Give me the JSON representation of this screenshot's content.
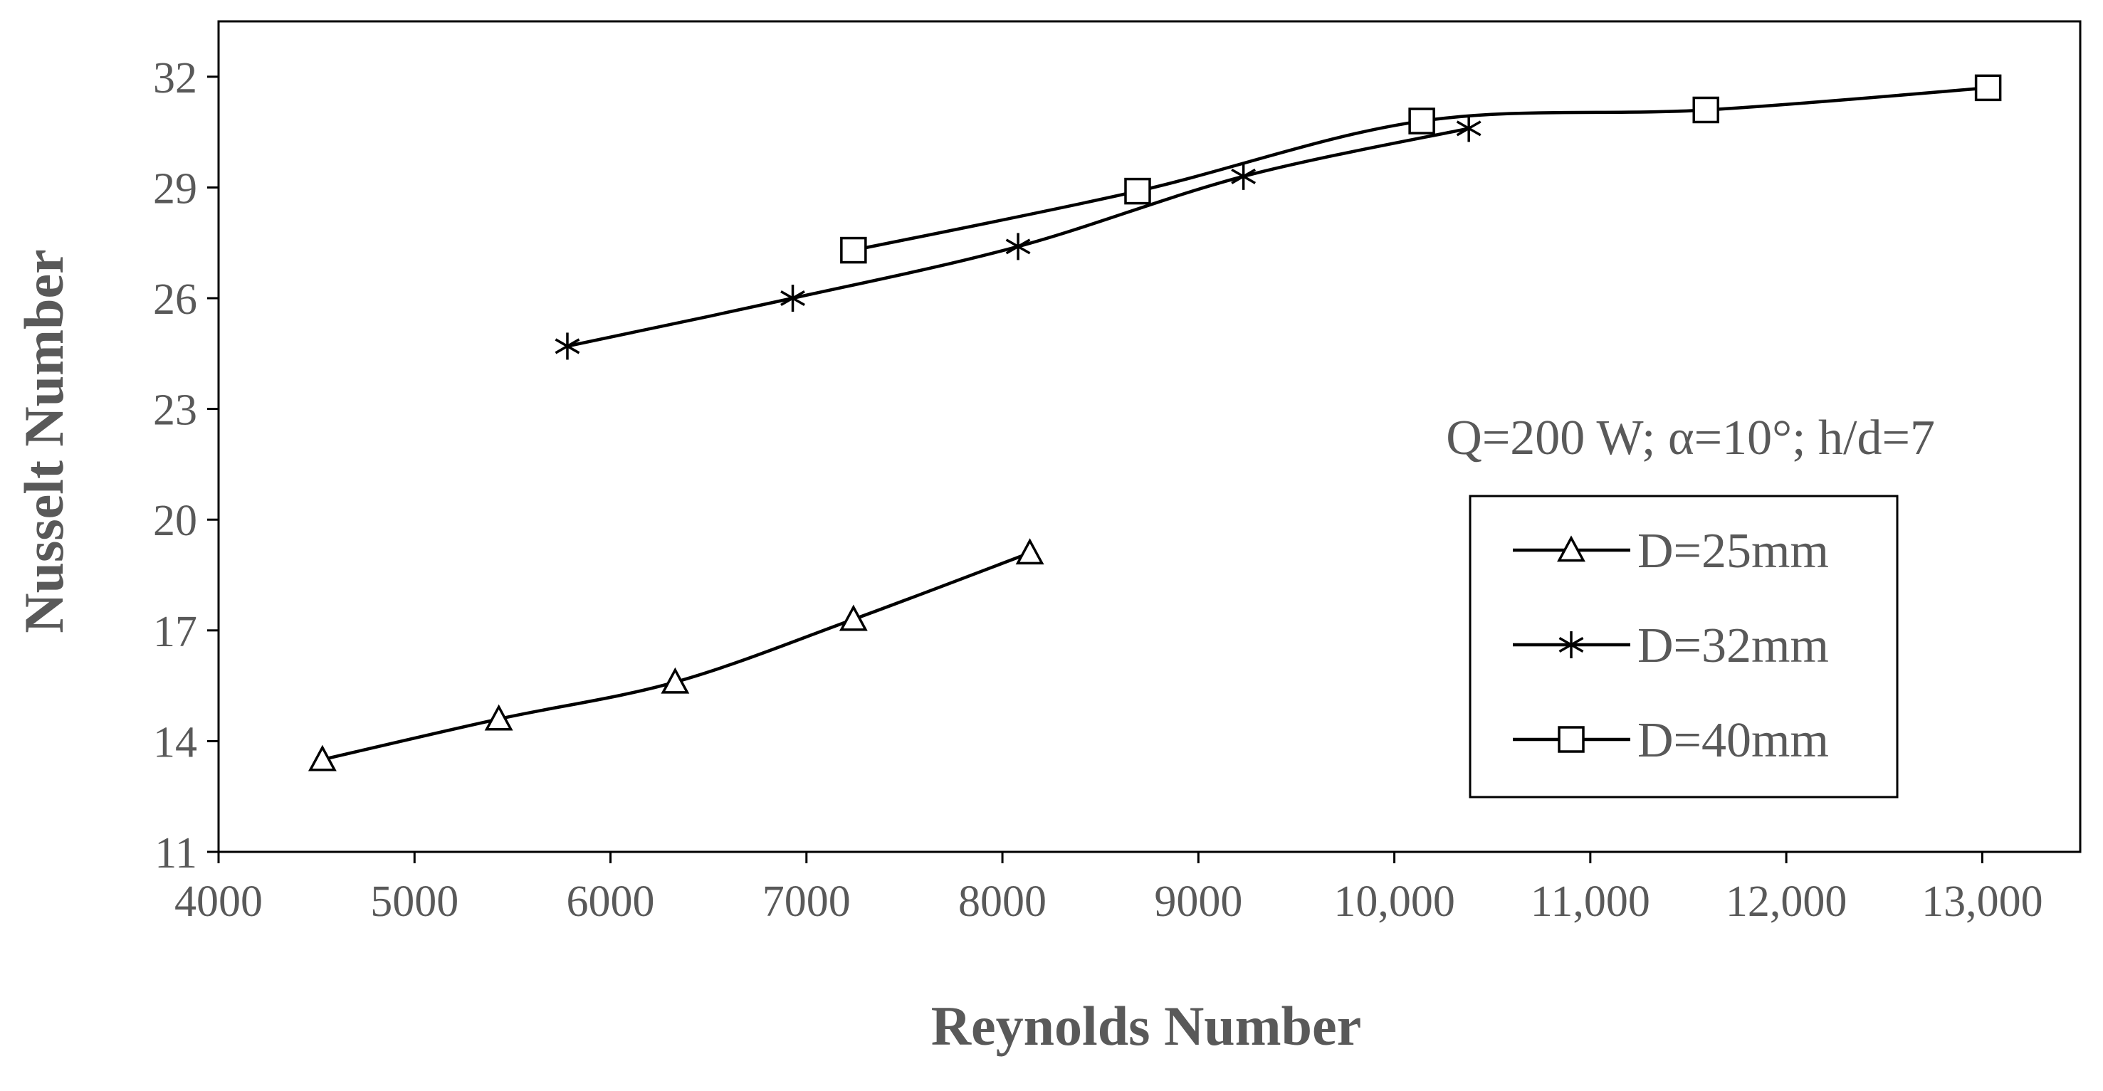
{
  "chart_data": {
    "type": "line",
    "title": "",
    "xlabel": "Reynolds Number",
    "ylabel": "Nusselt Number",
    "xlim": [
      4000,
      13500
    ],
    "ylim": [
      11,
      33.5
    ],
    "xticks": [
      4000,
      5000,
      6000,
      7000,
      8000,
      9000,
      10000,
      11000,
      12000,
      13000
    ],
    "xtick_labels": [
      "4000",
      "5000",
      "6000",
      "7000",
      "8000",
      "9000",
      "10,000",
      "11,000",
      "12,000",
      "13,000"
    ],
    "yticks": [
      11,
      14,
      17,
      20,
      23,
      26,
      29,
      32
    ],
    "ytick_labels": [
      "11",
      "14",
      "17",
      "20",
      "23",
      "26",
      "29",
      "32"
    ],
    "grid": false,
    "legend_position": "bottom-right",
    "annotation": "Q=200 W; α=10°;  h/d=7",
    "series": [
      {
        "name": "D=25mm",
        "marker": "triangle",
        "x": [
          4530,
          5430,
          6330,
          7240,
          8140
        ],
        "y": [
          13.5,
          14.6,
          15.6,
          17.3,
          19.1
        ]
      },
      {
        "name": "D=32mm",
        "marker": "asterisk",
        "x": [
          5780,
          6930,
          8080,
          9230,
          10380
        ],
        "y": [
          24.7,
          26.0,
          27.4,
          29.3,
          30.6
        ]
      },
      {
        "name": "D=40mm",
        "marker": "square",
        "x": [
          7240,
          8690,
          10140,
          11590,
          13030
        ],
        "y": [
          27.3,
          28.9,
          30.8,
          31.1,
          31.7
        ]
      }
    ]
  },
  "colors": {
    "axis": "#000000",
    "tick_text": "#595959",
    "axis_title": "#595959",
    "line": "#000000",
    "marker_fill": "#ffffff"
  }
}
